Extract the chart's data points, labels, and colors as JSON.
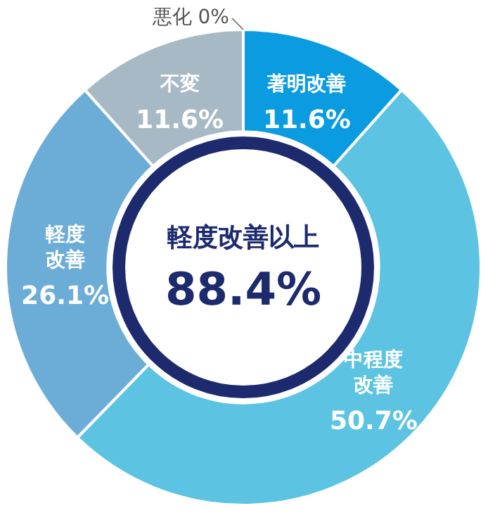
{
  "chart_data": {
    "type": "donut",
    "categories": [
      "著明改善",
      "中程度改善",
      "軽度改善",
      "不変",
      "悪化"
    ],
    "values": [
      11.6,
      50.7,
      26.1,
      11.6,
      0
    ],
    "value_labels": [
      "11.6%",
      "50.7%",
      "26.1%",
      "11.6%",
      "0%"
    ],
    "colors": [
      "#0a9be0",
      "#5cc3e2",
      "#6cadd8",
      "#a8b9c6",
      "#8a8a8a"
    ],
    "annotations": [
      "軽度改善以上",
      "88.4%"
    ]
  }
}
